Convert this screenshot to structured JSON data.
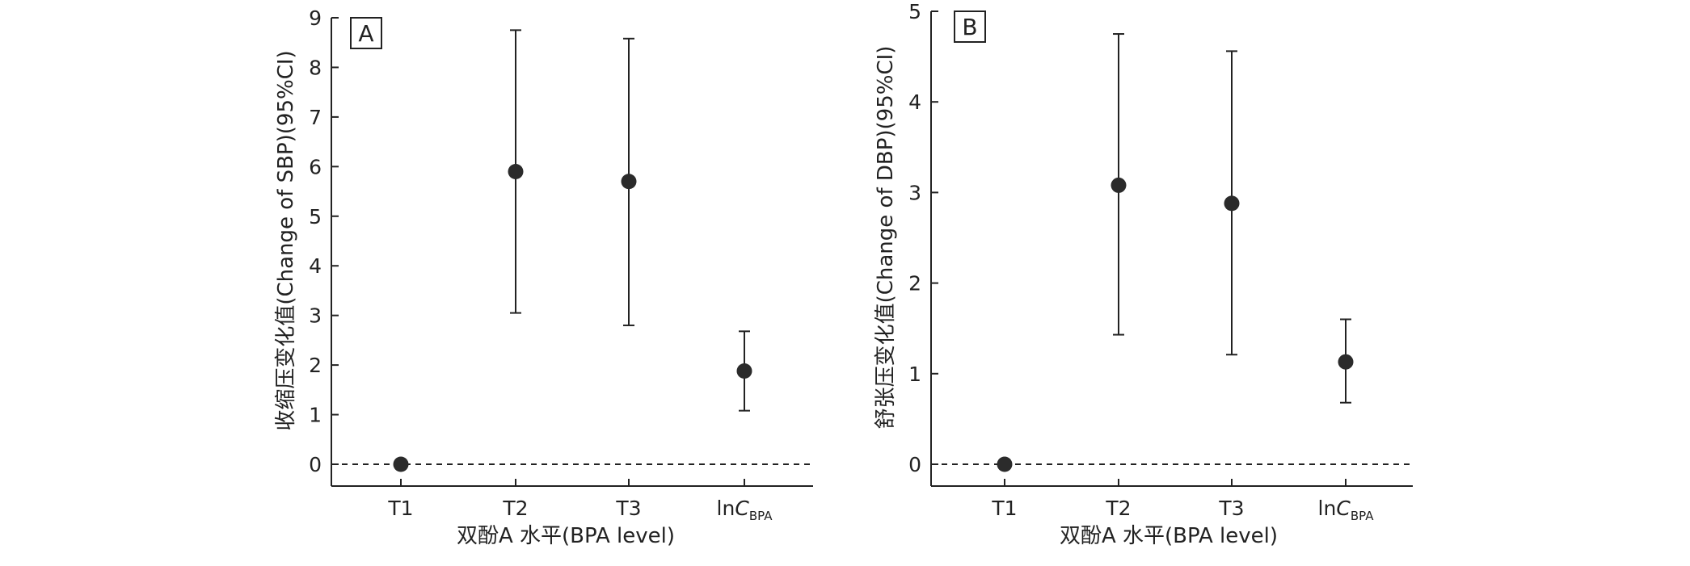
{
  "chart_data": [
    {
      "type": "scatter",
      "panel_label": "A",
      "title": "",
      "xlabel": "双酚A 水平(BPA level)",
      "ylabel": "收缩压变化值(Change of SBP)(95%CI)",
      "categories": [
        "T1",
        "T2",
        "T3",
        "lnCBPA"
      ],
      "category_labels": [
        {
          "main": "T1",
          "italic": "",
          "sub": ""
        },
        {
          "main": "T2",
          "italic": "",
          "sub": ""
        },
        {
          "main": "T3",
          "italic": "",
          "sub": ""
        },
        {
          "main": "ln",
          "italic": "C",
          "sub": "BPA"
        }
      ],
      "values": [
        0,
        5.9,
        5.7,
        1.88
      ],
      "ci_lower": [
        0,
        3.05,
        2.8,
        1.08
      ],
      "ci_upper": [
        0,
        8.75,
        8.58,
        2.68
      ],
      "ylim": [
        -0.45,
        9
      ],
      "yticks": [
        0,
        1,
        2,
        3,
        4,
        5,
        6,
        7,
        8,
        9
      ],
      "reference_line": {
        "y": 0,
        "style": "dashed"
      },
      "grid": false,
      "marker_color": "#2b2b2b"
    },
    {
      "type": "scatter",
      "panel_label": "B",
      "title": "",
      "xlabel": "双酚A 水平(BPA level)",
      "ylabel": "舒张压变化值(Change of DBP)(95%CI)",
      "categories": [
        "T1",
        "T2",
        "T3",
        "lnCBPA"
      ],
      "category_labels": [
        {
          "main": "T1",
          "italic": "",
          "sub": ""
        },
        {
          "main": "T2",
          "italic": "",
          "sub": ""
        },
        {
          "main": "T3",
          "italic": "",
          "sub": ""
        },
        {
          "main": "ln",
          "italic": "C",
          "sub": "BPA"
        }
      ],
      "values": [
        0,
        3.08,
        2.88,
        1.13
      ],
      "ci_lower": [
        0,
        1.43,
        1.21,
        0.68
      ],
      "ci_upper": [
        0,
        4.75,
        4.56,
        1.6
      ],
      "ylim": [
        -0.25,
        5
      ],
      "yticks": [
        0,
        1,
        2,
        3,
        4,
        5
      ],
      "reference_line": {
        "y": 0,
        "style": "dashed"
      },
      "grid": false,
      "marker_color": "#2b2b2b"
    }
  ]
}
